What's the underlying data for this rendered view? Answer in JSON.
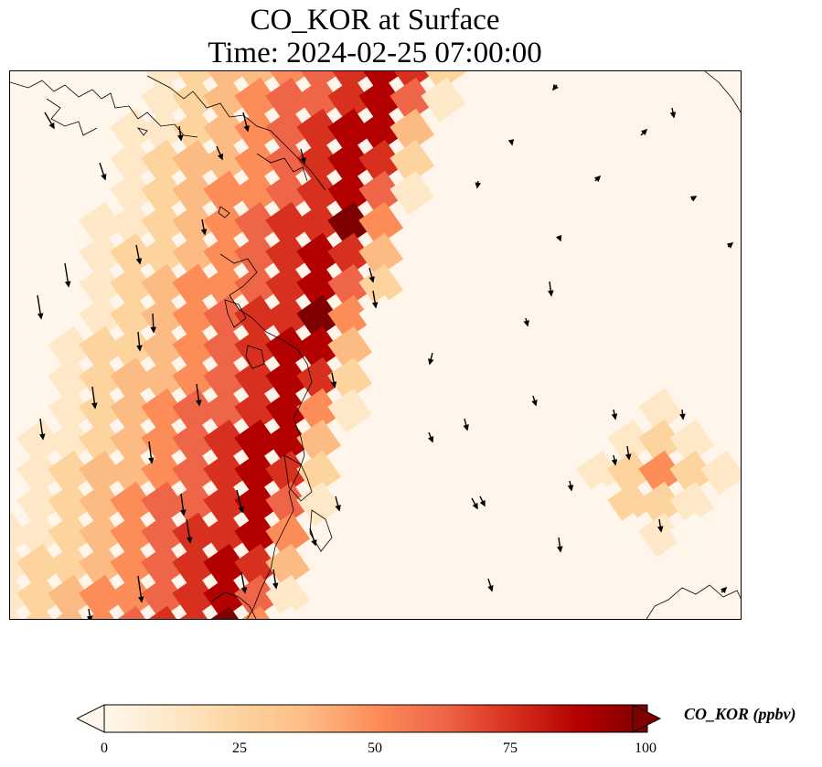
{
  "title": {
    "line1": "CO_KOR at Surface",
    "line2": "Time: 2024-02-25 07:00:00"
  },
  "map": {
    "variable": "CO_KOR",
    "level": "Surface",
    "colormap": "OrRd",
    "wind_vectors": true,
    "coastlines": true
  },
  "colorbar": {
    "label": "CO_KOR (ppbv)",
    "min": 0,
    "max": 100,
    "extend": "both",
    "ticks": [
      "0",
      "25",
      "50",
      "75",
      "100"
    ],
    "colors": [
      "#fff7ec",
      "#fee8c8",
      "#fdd49e",
      "#fdbb84",
      "#fc8d59",
      "#ef6548",
      "#d7301f",
      "#b30000",
      "#7f0000"
    ]
  }
}
